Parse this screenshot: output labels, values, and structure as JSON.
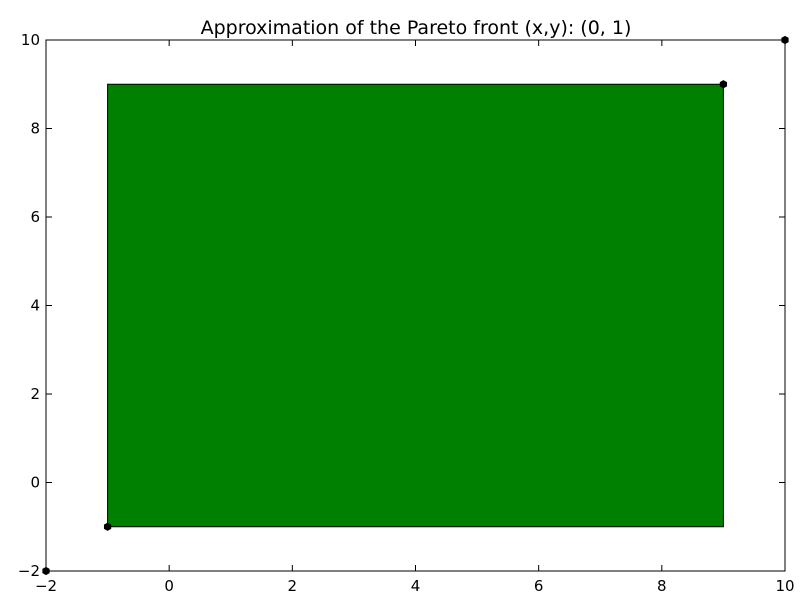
{
  "chart_data": {
    "type": "area",
    "title": "Approximation of the Pareto front (x,y): (0, 1)",
    "xlabel": "",
    "ylabel": "",
    "xlim": [
      -2,
      10
    ],
    "ylim": [
      -2,
      10
    ],
    "x_ticks": [
      -2,
      0,
      2,
      4,
      6,
      8,
      10
    ],
    "y_ticks": [
      -2,
      0,
      2,
      4,
      6,
      8,
      10
    ],
    "grid": false,
    "region": {
      "x_min": -1,
      "x_max": 9,
      "y_min": -1,
      "y_max": 9,
      "fill_color": "#008000",
      "edge_color": "#000000"
    },
    "points": [
      {
        "x": -2,
        "y": -2
      },
      {
        "x": -1,
        "y": -1
      },
      {
        "x": 9,
        "y": 9
      },
      {
        "x": 10,
        "y": 10
      }
    ],
    "marker_color": "#000000"
  }
}
